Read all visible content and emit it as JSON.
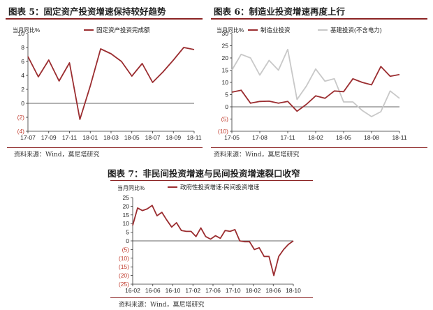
{
  "headers": {
    "chart5": "图表 5：固定资产投资增速保持较好趋势",
    "chart6": "图表 6：制造业投资增速再度上行",
    "chart7": "图表 7：非民间投资增速与民间投资增速裂口收窄"
  },
  "sources": {
    "chart5": "资料来源：Wind，莫尼塔研究",
    "chart6": "资料来源：Wind，莫尼塔研究",
    "chart7": "资料来源：Wind，莫尼塔研究"
  },
  "colors": {
    "primary": "#9b2d30",
    "secondary": "#c8c8c8",
    "rule": "#8b2323"
  },
  "chart_data": [
    {
      "type": "line",
      "ylabel": "当月同比%",
      "ylim": [
        -4,
        10
      ],
      "yticks": [
        -4,
        -2,
        0,
        2,
        4,
        6,
        8,
        10
      ],
      "ytick_labels": [
        "(4)",
        "(2)",
        "0",
        "2",
        "4",
        "6",
        "8",
        "10"
      ],
      "xtick_labels": [
        "17-07",
        "17-09",
        "17-11",
        "18-01",
        "18-03",
        "18-05",
        "18-07",
        "18-09",
        "18-11"
      ],
      "series": [
        {
          "name": "固定资产投资完成额",
          "color": "#9b2d30",
          "values": [
            6.7,
            3.8,
            6.2,
            3.2,
            5.8,
            -2.3,
            2.5,
            7.8,
            7.1,
            6.0,
            3.9,
            5.7,
            3.0,
            4.5,
            6.2,
            8.0,
            7.7
          ]
        }
      ],
      "legend": "top"
    },
    {
      "type": "line",
      "ylabel": "当月同比%",
      "ylim": [
        -10,
        30
      ],
      "yticks": [
        -10,
        -5,
        0,
        5,
        10,
        15,
        20,
        25,
        30
      ],
      "ytick_labels": [
        "(10)",
        "(5)",
        "0",
        "5",
        "10",
        "15",
        "20",
        "25",
        "30"
      ],
      "xtick_labels": [
        "17-05",
        "17-08",
        "17-11",
        "18-02",
        "18-05",
        "18-08",
        "18-11"
      ],
      "series": [
        {
          "name": "制造业投资",
          "color": "#9b2d30",
          "values": [
            6.0,
            6.8,
            1.5,
            2.2,
            2.3,
            1.5,
            2.2,
            -1.8,
            1.0,
            4.5,
            3.5,
            6.5,
            6.2,
            11.5,
            10.0,
            9.0,
            16.5,
            12.5,
            13.2
          ]
        },
        {
          "name": "基建投资(不含电力)",
          "color": "#c8c8c8",
          "values": [
            15.0,
            21.5,
            20.0,
            13.0,
            19.0,
            15.0,
            23.5,
            3.0,
            8.5,
            15.5,
            10.5,
            11.5,
            2.0,
            2.0,
            -1.5,
            -4.0,
            -2.0,
            6.5,
            3.5
          ]
        }
      ],
      "legend": "top"
    },
    {
      "type": "line",
      "ylabel": "当月同比%",
      "ylim": [
        -25,
        25
      ],
      "yticks": [
        -25,
        -20,
        -15,
        -10,
        -5,
        0,
        5,
        10,
        15,
        20,
        25
      ],
      "ytick_labels": [
        "(25)",
        "(20)",
        "(15)",
        "(10)",
        "(5)",
        "0",
        "5",
        "10",
        "15",
        "20",
        "25"
      ],
      "xtick_labels": [
        "16-02",
        "16-06",
        "16-10",
        "17-02",
        "17-06",
        "17-10",
        "18-02",
        "18-06",
        "18-10"
      ],
      "series": [
        {
          "name": "政府性投资增速-民间投资增速",
          "color": "#9b2d30",
          "values": [
            9.0,
            19.0,
            17.5,
            18.5,
            20.5,
            14.5,
            16.5,
            12.0,
            8.0,
            10.5,
            6.0,
            5.5,
            5.5,
            2.5,
            7.5,
            2.5,
            1.0,
            3.0,
            1.5,
            6.0,
            5.5,
            6.5,
            0.0,
            -0.5,
            -0.5,
            -5.0,
            -4.0,
            -9.0,
            -9.0,
            -20.0,
            -9.0,
            -5.0,
            -2.0,
            0.0
          ]
        }
      ],
      "legend": "top"
    }
  ]
}
